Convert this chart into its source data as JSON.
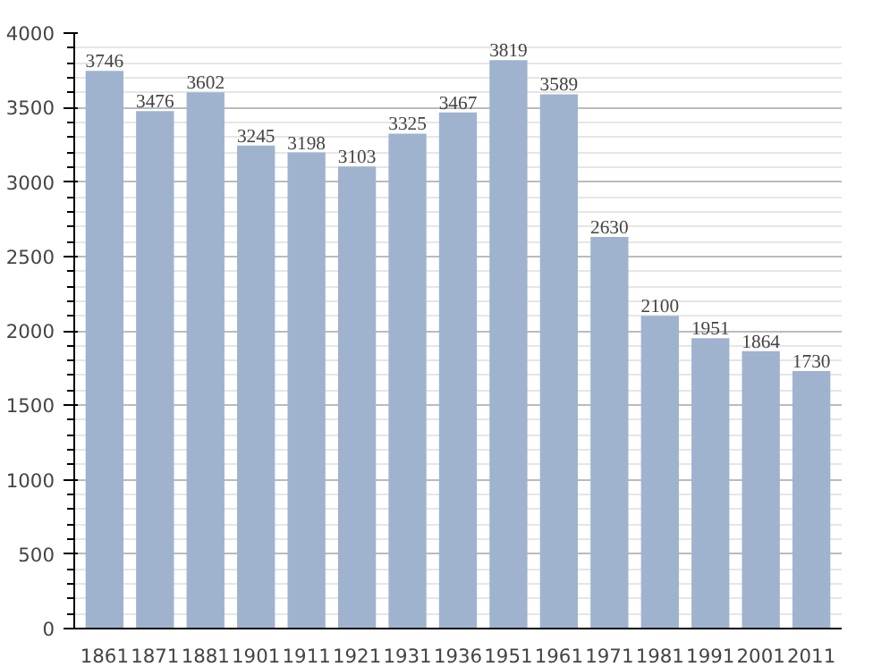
{
  "chart_data": {
    "type": "bar",
    "categories": [
      "1861",
      "1871",
      "1881",
      "1901",
      "1911",
      "1921",
      "1931",
      "1936",
      "1951",
      "1961",
      "1971",
      "1981",
      "1991",
      "2001",
      "2011"
    ],
    "values": [
      3746,
      3476,
      3602,
      3245,
      3198,
      3103,
      3325,
      3467,
      3819,
      3589,
      2630,
      2100,
      1951,
      1864,
      1730
    ],
    "color": "#9fb3cf",
    "ylim": [
      0,
      4000
    ],
    "yticks": [
      0,
      500,
      1000,
      1500,
      2000,
      2500,
      3000,
      3500,
      4000
    ],
    "grid": "y",
    "data_labels": true
  }
}
